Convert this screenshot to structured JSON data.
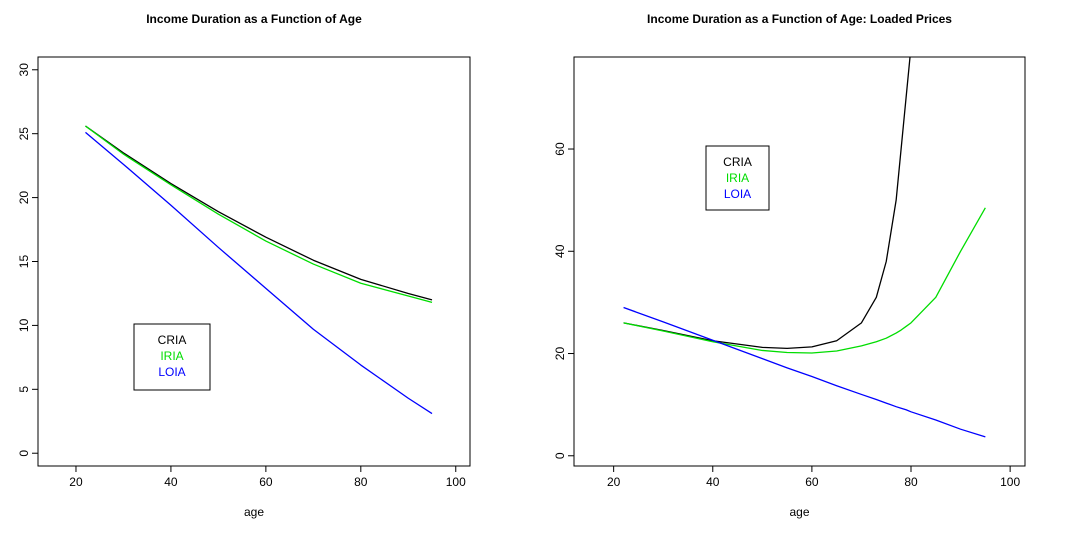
{
  "chart_data": [
    {
      "type": "line",
      "title": "Income Duration as a Function of Age",
      "xlabel": "age",
      "ylabel": "",
      "xlim": [
        12,
        103
      ],
      "ylim": [
        -1,
        31
      ],
      "xticks": [
        20,
        40,
        60,
        80,
        100
      ],
      "yticks": [
        0,
        5,
        10,
        15,
        20,
        25,
        30
      ],
      "grid": false,
      "legend_position": "bottom-left",
      "x": [
        22,
        30,
        40,
        50,
        60,
        70,
        80,
        90,
        95
      ],
      "series": [
        {
          "name": "CRIA",
          "color": "#000000",
          "values": [
            25.6,
            23.5,
            21.1,
            18.9,
            16.9,
            15.1,
            13.6,
            12.5,
            12.0
          ]
        },
        {
          "name": "IRIA",
          "color": "#00dd00",
          "values": [
            25.6,
            23.4,
            21.0,
            18.7,
            16.6,
            14.8,
            13.3,
            12.3,
            11.8
          ]
        },
        {
          "name": "LOIA",
          "color": "#0000ff",
          "values": [
            25.1,
            22.6,
            19.4,
            16.1,
            12.9,
            9.7,
            6.9,
            4.3,
            3.1
          ]
        }
      ]
    },
    {
      "type": "line",
      "title": "Income Duration as a Function of Age: Loaded Prices",
      "xlabel": "age",
      "ylabel": "",
      "xlim": [
        12,
        103
      ],
      "ylim": [
        -2,
        78
      ],
      "xticks": [
        20,
        40,
        60,
        80,
        100
      ],
      "yticks": [
        0,
        20,
        40,
        60
      ],
      "grid": false,
      "legend_position": "top-left",
      "x": [
        22,
        30,
        40,
        50,
        55,
        60,
        65,
        70,
        73,
        75,
        77,
        78,
        79,
        80,
        85,
        90,
        95
      ],
      "series": [
        {
          "name": "CRIA",
          "color": "#000000",
          "values": [
            26,
            24.5,
            22.5,
            21.2,
            21.0,
            21.3,
            22.5,
            26,
            31,
            38,
            50,
            60,
            70,
            80,
            null,
            null,
            null
          ]
        },
        {
          "name": "IRIA",
          "color": "#00dd00",
          "values": [
            26,
            24.4,
            22.3,
            20.6,
            20.2,
            20.1,
            20.5,
            21.5,
            22.3,
            23,
            24,
            24.6,
            25.3,
            26,
            31,
            40,
            48.5
          ]
        },
        {
          "name": "LOIA",
          "color": "#0000ff",
          "values": [
            29,
            26.2,
            22.6,
            19.0,
            17.2,
            15.5,
            13.7,
            12.0,
            11.0,
            10.3,
            9.6,
            9.3,
            9.0,
            8.6,
            7.0,
            5.2,
            3.7
          ]
        }
      ]
    }
  ]
}
